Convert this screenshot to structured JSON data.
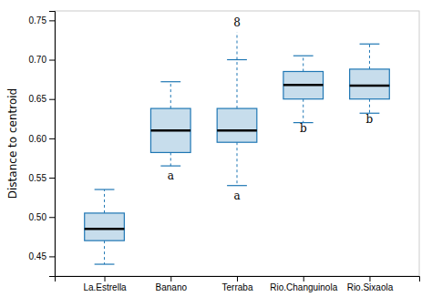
{
  "chart_data": {
    "type": "box",
    "categories": [
      "La.Estrella",
      "Banano",
      "Terraba",
      "Rio.Changuinola",
      "Rio.Sixaola"
    ],
    "boxes": [
      {
        "whislo": 0.44,
        "q1": 0.47,
        "med": 0.485,
        "q3": 0.505,
        "whishi": 0.535,
        "fliers": []
      },
      {
        "whislo": 0.565,
        "q1": 0.582,
        "med": 0.61,
        "q3": 0.638,
        "whishi": 0.672,
        "fliers": []
      },
      {
        "whislo": 0.54,
        "q1": 0.595,
        "med": 0.61,
        "q3": 0.638,
        "whishi": 0.7,
        "fliers": [
          0.735
        ]
      },
      {
        "whislo": 0.62,
        "q1": 0.65,
        "med": 0.668,
        "q3": 0.685,
        "whishi": 0.705,
        "fliers": []
      },
      {
        "whislo": 0.632,
        "q1": 0.65,
        "med": 0.667,
        "q3": 0.688,
        "whishi": 0.72,
        "fliers": []
      }
    ],
    "annotations": [
      {
        "text": "a",
        "x": "Banano",
        "y": 0.548
      },
      {
        "text": "a",
        "x": "Terraba",
        "y": 0.522
      },
      {
        "text": "b",
        "x": "Rio.Changuinola",
        "y": 0.608
      },
      {
        "text": "b",
        "x": "Rio.Sixaola",
        "y": 0.62
      },
      {
        "text": "8",
        "x": "Terraba",
        "y": 0.742
      }
    ],
    "ylabel": "Distance to centroid",
    "ylim": [
      0.425,
      0.762
    ],
    "yticks": [
      0.45,
      {
        "value": 0.5,
        "label": "0.50"
      },
      0.55,
      {
        "value": 0.6,
        "label": "0.60"
      },
      0.65,
      {
        "value": 0.7,
        "label": "0.70"
      },
      0.75
    ],
    "grid": false
  }
}
